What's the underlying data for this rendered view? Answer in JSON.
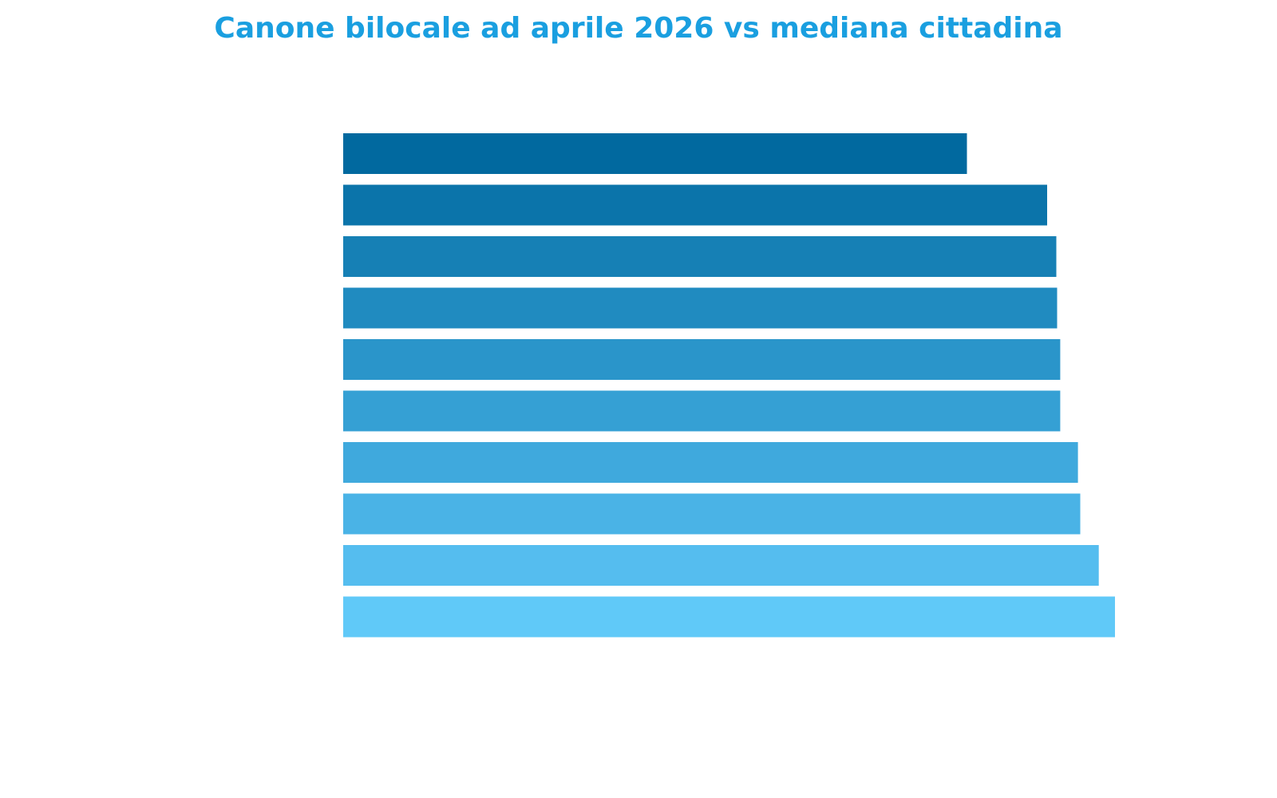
{
  "title_color": "#1a9fe0",
  "chart_data": {
    "type": "bar",
    "orientation": "horizontal",
    "title": "Canone bilocale ad aprile 2026 vs mediana cittadina",
    "categories": [
      "",
      "",
      "",
      "",
      "",
      "",
      "",
      "",
      "",
      ""
    ],
    "values": [
      809,
      913,
      925,
      926,
      930,
      930,
      953,
      956,
      980,
      1001
    ],
    "value_axis_visible": false,
    "category_axis_visible": false,
    "xlim": [
      0,
      1100
    ],
    "grid": false,
    "legend": "none",
    "colors": [
      "#01699f",
      "#0b74aa",
      "#1680b5",
      "#208bc0",
      "#2a95ca",
      "#35a0d4",
      "#3fa9dd",
      "#4ab3e6",
      "#55bdef",
      "#60c9f8"
    ]
  }
}
